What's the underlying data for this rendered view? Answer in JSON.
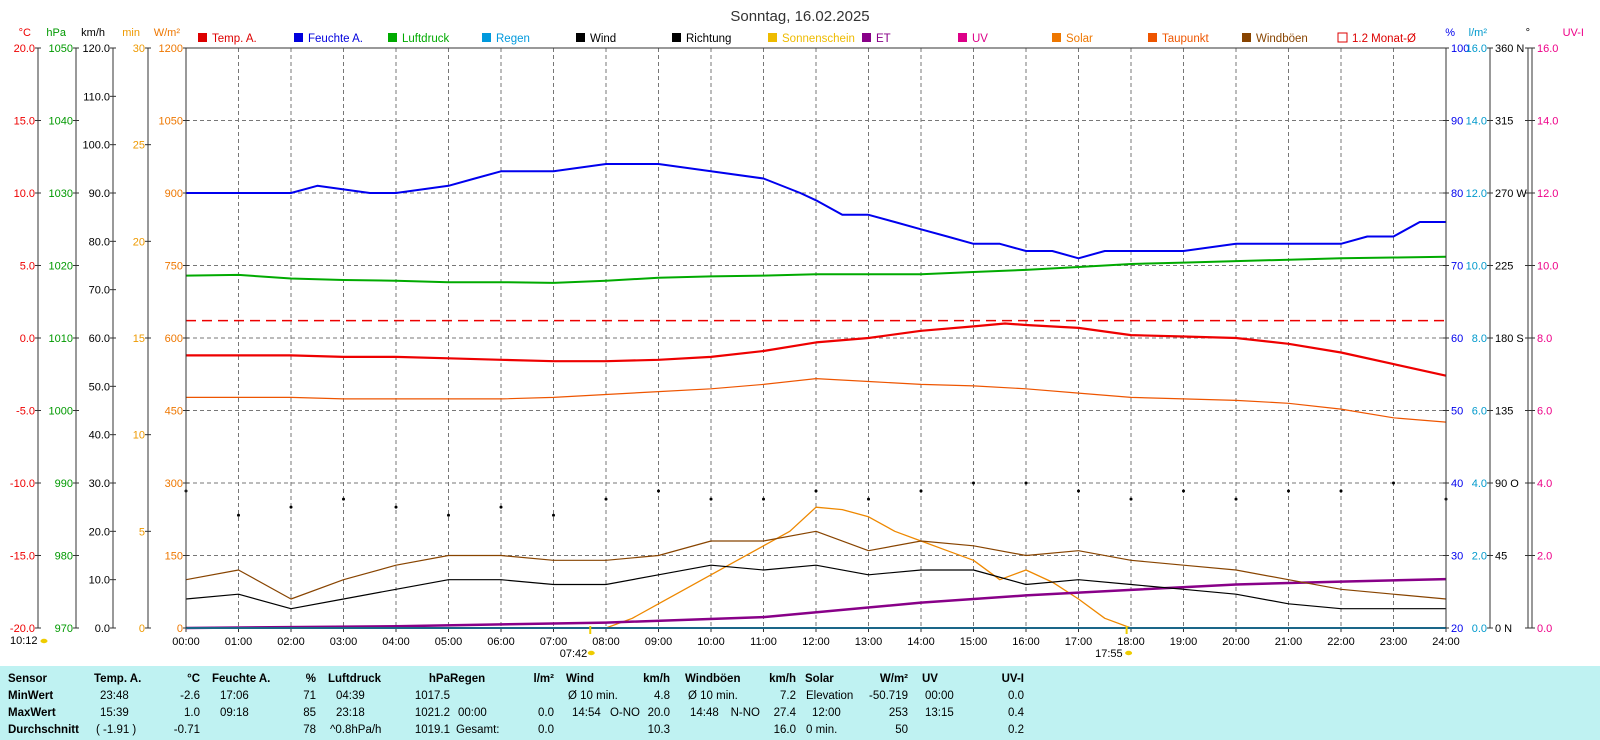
{
  "chart_data": {
    "type": "line",
    "title": "Sonntag, 16.02.2025",
    "x": [
      "00:00",
      "01:00",
      "02:00",
      "03:00",
      "04:00",
      "05:00",
      "06:00",
      "07:00",
      "08:00",
      "09:00",
      "10:00",
      "11:00",
      "12:00",
      "13:00",
      "14:00",
      "15:00",
      "16:00",
      "17:00",
      "18:00",
      "19:00",
      "20:00",
      "21:00",
      "22:00",
      "23:00",
      "24:00"
    ],
    "legend_position": "top",
    "grid": true,
    "legend": [
      {
        "label": "Temp. A.",
        "color": "#dd0000",
        "style": "box"
      },
      {
        "label": "Feuchte A.",
        "color": "#0000dd",
        "style": "box"
      },
      {
        "label": "Luftdruck",
        "color": "#00aa00",
        "style": "box"
      },
      {
        "label": "Regen",
        "color": "#0099dd",
        "style": "box"
      },
      {
        "label": "Wind",
        "color": "#000000",
        "style": "box"
      },
      {
        "label": "Richtung",
        "color": "#000000",
        "style": "box"
      },
      {
        "label": "Sonnenschein",
        "color": "#eebb00",
        "style": "box"
      },
      {
        "label": "ET",
        "color": "#880088",
        "style": "box"
      },
      {
        "label": "UV",
        "color": "#dd0088",
        "style": "box"
      },
      {
        "label": "Solar",
        "color": "#ee7700",
        "style": "box"
      },
      {
        "label": "Taupunkt",
        "color": "#ee5500",
        "style": "box"
      },
      {
        "label": "Windböen",
        "color": "#884400",
        "style": "box"
      },
      {
        "label": "1.2 Monat-Ø",
        "color": "#dd0000",
        "style": "outline"
      }
    ],
    "axes": {
      "temp": {
        "unit": "°C",
        "color": "#ee0000",
        "min": -20,
        "max": 20,
        "ticks": [
          "20.0",
          "15.0",
          "10.0",
          "5.0",
          "0.0",
          "-5.0",
          "-10.0",
          "-15.0",
          "-20.0"
        ]
      },
      "pressure": {
        "unit": "hPa",
        "color": "#009900",
        "min": 970,
        "max": 1050,
        "ticks": [
          "1050",
          "1040",
          "1030",
          "1020",
          "1010",
          "1000",
          "990",
          "980",
          "970"
        ]
      },
      "wind": {
        "unit": "km/h",
        "color": "#000000",
        "min": 0,
        "max": 120,
        "ticks": [
          "120.0",
          "110.0",
          "100.0",
          "90.0",
          "80.0",
          "70.0",
          "60.0",
          "50.0",
          "40.0",
          "30.0",
          "20.0",
          "10.0",
          "0.0"
        ]
      },
      "minutes": {
        "unit": "min",
        "color": "#ee9900",
        "min": 0,
        "max": 30,
        "ticks": [
          "30",
          "25",
          "20",
          "15",
          "10",
          "5",
          "0"
        ]
      },
      "solar": {
        "unit": "W/m²",
        "color": "#ee7700",
        "min": 0,
        "max": 1200,
        "ticks": [
          "1200",
          "1050",
          "900",
          "750",
          "600",
          "450",
          "300",
          "150",
          "0"
        ]
      },
      "humidity": {
        "unit": "%",
        "color": "#0000ee",
        "min": 20,
        "max": 100,
        "ticks": [
          "100",
          "90",
          "80",
          "70",
          "60",
          "50",
          "40",
          "30",
          "20"
        ]
      },
      "rain": {
        "unit": "l/m²",
        "color": "#0099cc",
        "min": 0,
        "max": 16,
        "ticks": [
          "16.0",
          "14.0",
          "12.0",
          "10.0",
          "8.0",
          "6.0",
          "4.0",
          "2.0",
          "0.0"
        ]
      },
      "direction": {
        "unit": "°",
        "color": "#000000",
        "min": 0,
        "max": 360,
        "ticks": [
          "360 N",
          "315",
          "270 W",
          "225",
          "180 S",
          "135",
          "90 O",
          "45",
          "0 N"
        ]
      },
      "uvi": {
        "unit": "UV-I",
        "color": "#ee0088",
        "min": 0,
        "max": 16,
        "ticks": [
          "16.0",
          "14.0",
          "12.0",
          "10.0",
          "8.0",
          "6.0",
          "4.0",
          "2.0",
          "0.0"
        ]
      }
    },
    "series": [
      {
        "name": "Feuchte A.",
        "axis": "humidity",
        "color": "#0000ee",
        "x": [
          0,
          2,
          2.5,
          3.5,
          4,
          5,
          5.5,
          6,
          7,
          8,
          9,
          10,
          11,
          11.7,
          12,
          12.5,
          13,
          13.5,
          14,
          14.5,
          15,
          15.5,
          16,
          16.5,
          17,
          17.5,
          18,
          19,
          20,
          20.5,
          21,
          22,
          22.5,
          23,
          23.5,
          24
        ],
        "y": [
          80,
          80,
          81,
          80,
          80,
          81,
          82,
          83,
          83,
          84,
          84,
          83,
          82,
          80,
          79,
          77,
          77,
          76,
          75,
          74,
          73,
          73,
          72,
          72,
          71,
          72,
          72,
          72,
          73,
          73,
          73,
          73,
          74,
          74,
          76,
          76
        ]
      },
      {
        "name": "Luftdruck",
        "axis": "pressure",
        "color": "#00aa00",
        "x": [
          0,
          1,
          2,
          3,
          4,
          5,
          6,
          7,
          8,
          9,
          10,
          11,
          12,
          13,
          14,
          15,
          16,
          17,
          18,
          19,
          20,
          21,
          22,
          23,
          24
        ],
        "y": [
          1018.6,
          1018.7,
          1018.2,
          1018.0,
          1017.9,
          1017.7,
          1017.7,
          1017.6,
          1017.9,
          1018.3,
          1018.5,
          1018.6,
          1018.8,
          1018.8,
          1018.8,
          1019.1,
          1019.4,
          1019.8,
          1020.2,
          1020.4,
          1020.6,
          1020.8,
          1021.0,
          1021.1,
          1021.2
        ]
      },
      {
        "name": "Temp. A.",
        "axis": "temp",
        "color": "#ee0000",
        "x": [
          0,
          1,
          2,
          3,
          4,
          5,
          6,
          7,
          8,
          9,
          10,
          11,
          12,
          13,
          14,
          15,
          15.6,
          16,
          17,
          18,
          19,
          20,
          21,
          22,
          23,
          24
        ],
        "y": [
          -1.2,
          -1.2,
          -1.2,
          -1.3,
          -1.3,
          -1.4,
          -1.5,
          -1.6,
          -1.6,
          -1.5,
          -1.3,
          -0.9,
          -0.3,
          0.0,
          0.5,
          0.8,
          1.0,
          0.9,
          0.7,
          0.2,
          0.1,
          0.0,
          -0.4,
          -1.0,
          -1.8,
          -2.6
        ]
      },
      {
        "name": "Taupunkt",
        "axis": "temp",
        "color": "#ee5500",
        "x": [
          0,
          1,
          2,
          3,
          4,
          5,
          6,
          7,
          8,
          9,
          10,
          11,
          12,
          13,
          14,
          15,
          16,
          17,
          18,
          19,
          20,
          21,
          22,
          23,
          24
        ],
        "y": [
          -4.1,
          -4.1,
          -4.1,
          -4.2,
          -4.2,
          -4.2,
          -4.2,
          -4.1,
          -3.9,
          -3.7,
          -3.5,
          -3.2,
          -2.8,
          -3.0,
          -3.2,
          -3.3,
          -3.5,
          -3.8,
          -4.1,
          -4.2,
          -4.3,
          -4.5,
          -4.9,
          -5.5,
          -5.8
        ]
      },
      {
        "name": "1.2 Monat-Ø",
        "axis": "temp",
        "color": "#ee0000",
        "x": [
          0,
          24
        ],
        "y": [
          1.2,
          1.2
        ]
      },
      {
        "name": "Solar",
        "axis": "solar",
        "color": "#ee8800",
        "x": [
          8,
          8.5,
          9,
          9.5,
          10,
          10.5,
          11,
          11.5,
          12,
          12.5,
          13,
          13.5,
          14,
          14.5,
          15,
          15.5,
          16,
          16.5,
          17,
          17.5,
          18
        ],
        "y": [
          0,
          20,
          50,
          80,
          110,
          140,
          170,
          200,
          250,
          245,
          230,
          200,
          180,
          160,
          140,
          100,
          120,
          95,
          60,
          20,
          0
        ]
      },
      {
        "name": "ET",
        "axis": "rain",
        "color": "#880088",
        "x": [
          0,
          4,
          8,
          11,
          12.5,
          14,
          16,
          18,
          20,
          22,
          24
        ],
        "y": [
          0,
          0.05,
          0.15,
          0.3,
          0.5,
          0.7,
          0.9,
          1.05,
          1.2,
          1.28,
          1.35
        ]
      },
      {
        "name": "Regen",
        "axis": "rain",
        "color": "#0099dd",
        "x": [
          0,
          24
        ],
        "y": [
          0,
          0
        ]
      },
      {
        "name": "Windböen",
        "axis": "wind",
        "color": "#884400",
        "x": [
          0,
          1,
          2,
          3,
          4,
          5,
          6,
          7,
          8,
          9,
          10,
          11,
          12,
          13,
          14,
          15,
          16,
          17,
          18,
          19,
          20,
          21,
          22,
          23,
          24
        ],
        "y": [
          10,
          12,
          6,
          10,
          13,
          15,
          15,
          14,
          14,
          15,
          18,
          18,
          20,
          16,
          18,
          17,
          15,
          16,
          14,
          13,
          12,
          10,
          8,
          7,
          6
        ]
      },
      {
        "name": "Wind",
        "axis": "wind",
        "color": "#000000",
        "x": [
          0,
          1,
          2,
          3,
          4,
          5,
          6,
          7,
          8,
          9,
          10,
          11,
          12,
          13,
          14,
          15,
          16,
          17,
          18,
          19,
          20,
          21,
          22,
          23,
          24
        ],
        "y": [
          6,
          7,
          4,
          6,
          8,
          10,
          10,
          9,
          9,
          11,
          13,
          12,
          13,
          11,
          12,
          12,
          9,
          10,
          9,
          8,
          7,
          5,
          4,
          4,
          4
        ]
      },
      {
        "name": "Richtung",
        "axis": "direction",
        "color": "#000000",
        "style": "dots",
        "x": [
          0,
          1,
          2,
          3,
          4,
          5,
          6,
          7,
          8,
          9,
          10,
          11,
          12,
          13,
          14,
          15,
          16,
          17,
          18,
          19,
          20,
          21,
          22,
          23,
          24
        ],
        "y": [
          85,
          70,
          75,
          80,
          75,
          70,
          75,
          70,
          80,
          85,
          80,
          80,
          85,
          80,
          85,
          90,
          90,
          85,
          80,
          85,
          80,
          85,
          85,
          90,
          80
        ]
      }
    ],
    "x_markers": {
      "now": "10:12",
      "sunrise": "07:42",
      "sunset": "17:55"
    }
  },
  "stats": {
    "headers": {
      "sensor": "Sensor",
      "temp": "Temp. A.",
      "temp_unit": "°C",
      "hum": "Feuchte A.",
      "hum_unit": "%",
      "pres": "Luftdruck",
      "pres_unit": "hPa",
      "rain": "Regen",
      "rain_unit": "l/m²",
      "wind": "Wind",
      "wind_unit": "km/h",
      "gust": "Windböen",
      "gust_unit": "km/h",
      "solar": "Solar",
      "solar_unit": "W/m²",
      "uv": "UV",
      "uv_unit": "UV-I"
    },
    "min": {
      "label": "MinWert",
      "temp_time": "23:48",
      "temp_val": "-2.6",
      "hum_time": "17:06",
      "hum_val": "71",
      "pres_time": "04:39",
      "pres_val": "1017.5",
      "rain_time": "",
      "rain_val": "",
      "wind_label": "Ø 10 min.",
      "wind_dir": "",
      "wind_val": "4.8",
      "gust_label": "Ø 10 min.",
      "gust_dir": "",
      "gust_val": "7.2",
      "solar_label": "Elevation",
      "solar_val": "-50.719",
      "uv_time": "00:00",
      "uv_val": "0.0"
    },
    "max": {
      "label": "MaxWert",
      "temp_time": "15:39",
      "temp_val": "1.0",
      "hum_time": "09:18",
      "hum_val": "85",
      "pres_time": "23:18",
      "pres_val": "1021.2",
      "rain_time": "00:00",
      "rain_val": "0.0",
      "wind_label": "14:54",
      "wind_dir": "O-NO",
      "wind_val": "20.0",
      "gust_label": "14:48",
      "gust_dir": "N-NO",
      "gust_val": "27.4",
      "solar_label": "12:00",
      "solar_val": "253",
      "uv_time": "13:15",
      "uv_val": "0.4"
    },
    "avg": {
      "label": "Durchschnitt",
      "temp_time": "( -1.91 )",
      "temp_val": "-0.71",
      "hum_time": "",
      "hum_val": "78",
      "pres_time": "^0.8hPa/h",
      "pres_val": "1019.1",
      "rain_time": "Gesamt:",
      "rain_val": "0.0",
      "wind_label": "",
      "wind_dir": "",
      "wind_val": "10.3",
      "gust_label": "",
      "gust_dir": "",
      "gust_val": "16.0",
      "solar_label": "0 min.",
      "solar_val": "50",
      "uv_time": "",
      "uv_val": "0.2"
    }
  }
}
